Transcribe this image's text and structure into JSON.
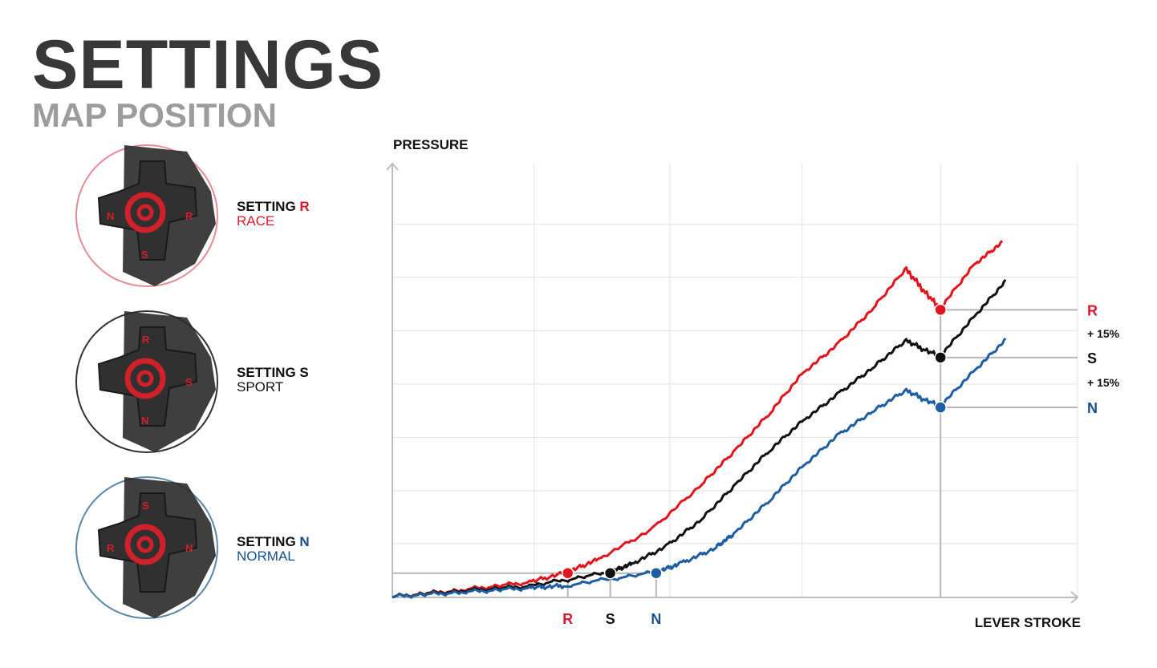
{
  "header": {
    "title": "SETTINGS",
    "subtitle": "MAP POSITION"
  },
  "settings": [
    {
      "key": "R",
      "prefix": "SETTING ",
      "letter": "R",
      "name": "RACE",
      "color": "#d71a30",
      "dial_letters": [
        "N",
        "R",
        "S"
      ]
    },
    {
      "key": "S",
      "prefix": "SETTING ",
      "letter": "S",
      "name": "SPORT",
      "color": "#111111",
      "dial_letters": [
        "R",
        "S",
        "N"
      ]
    },
    {
      "key": "N",
      "prefix": "SETTING ",
      "letter": "N",
      "name": "NORMAL",
      "color": "#17508b",
      "dial_letters": [
        "S",
        "R",
        "N"
      ]
    }
  ],
  "chart_data": {
    "type": "line",
    "ylabel": "PRESSURE",
    "xlabel": "LEVER STROKE",
    "xlim": [
      0,
      100
    ],
    "ylim": [
      0,
      100
    ],
    "grid": true,
    "x_gridlines": [
      20.7,
      40.5,
      59.8,
      80.0
    ],
    "y_gridlines": [
      12.4,
      24.6,
      36.9,
      49.2,
      61.5,
      73.8,
      86.0
    ],
    "series": [
      {
        "name": "R",
        "color": "#e0151d",
        "x": [
          0,
          10,
          20,
          25.6,
          30,
          38,
          45,
          50,
          55,
          60,
          65,
          70,
          75,
          80,
          85,
          89
        ],
        "y": [
          0,
          1.5,
          3.3,
          5.6,
          8.5,
          15.5,
          25.5,
          33.5,
          42,
          51.5,
          58,
          66,
          75.5,
          66.3,
          76.5,
          81.5
        ]
      },
      {
        "name": "S",
        "color": "#111111",
        "x": [
          0,
          10,
          20,
          31.8,
          35,
          40,
          45,
          50,
          55,
          60,
          65,
          70,
          75,
          80,
          85,
          89.5
        ],
        "y": [
          0,
          1.3,
          2.4,
          5.6,
          7.5,
          11.5,
          17.5,
          25.5,
          33.5,
          40.5,
          46.5,
          52.5,
          59,
          55.3,
          64.5,
          72.5
        ]
      },
      {
        "name": "N",
        "color": "#1d5ea3",
        "x": [
          0,
          10,
          20,
          25,
          38.5,
          42,
          47,
          50,
          55,
          60,
          65,
          70,
          75,
          80,
          85,
          89.5
        ],
        "y": [
          0,
          1,
          2,
          2.5,
          5.6,
          7.5,
          11,
          14.5,
          22,
          30,
          37,
          42.5,
          47.5,
          43.8,
          52,
          59
        ]
      }
    ],
    "markers": [
      {
        "series": "R",
        "x": 25.6,
        "y": 5.6
      },
      {
        "series": "S",
        "x": 31.8,
        "y": 5.6
      },
      {
        "series": "N",
        "x": 38.5,
        "y": 5.6
      },
      {
        "series": "R",
        "x": 80.0,
        "y": 66.3
      },
      {
        "series": "S",
        "x": 80.0,
        "y": 55.3
      },
      {
        "series": "N",
        "x": 80.0,
        "y": 43.8
      }
    ],
    "x_markers": [
      {
        "label": "R",
        "x": 25.6,
        "color": "#d71a30"
      },
      {
        "label": "S",
        "x": 31.8,
        "color": "#111111"
      },
      {
        "label": "N",
        "x": 38.5,
        "color": "#17508b"
      }
    ],
    "right_labels": [
      {
        "label": "R",
        "y": 66.3,
        "color": "#d71a30"
      },
      {
        "label": "S",
        "y": 55.3,
        "color": "#111111"
      },
      {
        "label": "N",
        "y": 43.8,
        "color": "#17508b"
      }
    ],
    "increments": [
      {
        "text": "+ 15%",
        "y": 60.8
      },
      {
        "text": "+ 15%",
        "y": 49.5
      }
    ]
  }
}
